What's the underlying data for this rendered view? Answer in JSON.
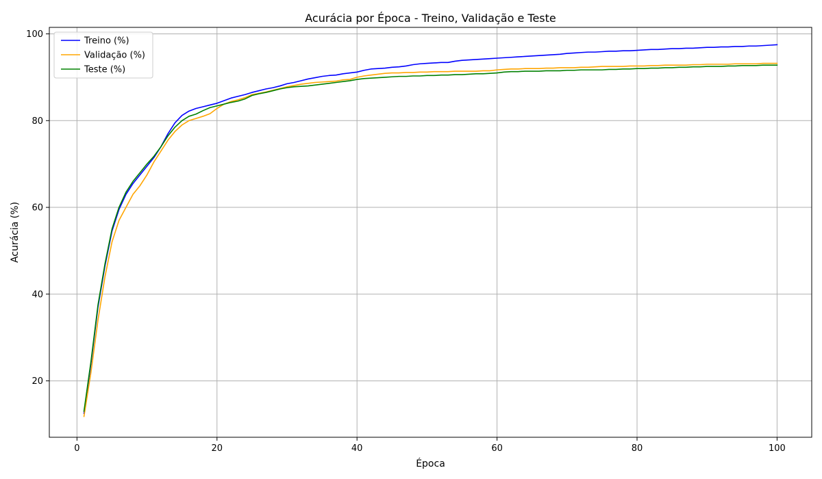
{
  "chart_data": {
    "type": "line",
    "title": "Acurácia por Época - Treino, Validação e Teste",
    "xlabel": "Época",
    "ylabel": "Acurácia (%)",
    "xlim": [
      -3.95,
      104.95
    ],
    "ylim": [
      7.0,
      101.5
    ],
    "xticks": [
      0,
      20,
      40,
      60,
      80,
      100
    ],
    "yticks": [
      20,
      40,
      60,
      80,
      100
    ],
    "grid": true,
    "legend_position": "upper-left",
    "x": [
      1,
      2,
      3,
      4,
      5,
      6,
      7,
      8,
      9,
      10,
      11,
      12,
      13,
      14,
      15,
      16,
      17,
      18,
      19,
      20,
      21,
      22,
      23,
      24,
      25,
      26,
      27,
      28,
      29,
      30,
      31,
      32,
      33,
      34,
      35,
      36,
      37,
      38,
      39,
      40,
      41,
      42,
      43,
      44,
      45,
      46,
      47,
      48,
      49,
      50,
      51,
      52,
      53,
      54,
      55,
      56,
      57,
      58,
      59,
      60,
      61,
      62,
      63,
      64,
      65,
      66,
      67,
      68,
      69,
      70,
      71,
      72,
      73,
      74,
      75,
      76,
      77,
      78,
      79,
      80,
      81,
      82,
      83,
      84,
      85,
      86,
      87,
      88,
      89,
      90,
      91,
      92,
      93,
      94,
      95,
      96,
      97,
      98,
      99,
      100
    ],
    "series": [
      {
        "name": "Treino (%)",
        "color": "#0000ff",
        "values": [
          12.5,
          24.0,
          37.0,
          46.5,
          54.5,
          59.5,
          63.0,
          65.5,
          67.5,
          69.5,
          71.5,
          74.0,
          77.0,
          79.5,
          81.2,
          82.2,
          82.8,
          83.2,
          83.6,
          84.0,
          84.6,
          85.2,
          85.6,
          86.0,
          86.5,
          86.9,
          87.3,
          87.6,
          88.0,
          88.5,
          88.8,
          89.2,
          89.6,
          89.9,
          90.2,
          90.4,
          90.5,
          90.8,
          91.0,
          91.2,
          91.6,
          91.9,
          92.0,
          92.1,
          92.3,
          92.4,
          92.6,
          92.9,
          93.1,
          93.2,
          93.3,
          93.4,
          93.4,
          93.7,
          93.9,
          94.0,
          94.1,
          94.2,
          94.3,
          94.4,
          94.5,
          94.6,
          94.7,
          94.8,
          94.9,
          95.0,
          95.1,
          95.2,
          95.3,
          95.5,
          95.6,
          95.7,
          95.8,
          95.8,
          95.9,
          96.0,
          96.0,
          96.1,
          96.1,
          96.2,
          96.3,
          96.4,
          96.4,
          96.5,
          96.6,
          96.6,
          96.7,
          96.7,
          96.8,
          96.9,
          96.9,
          97.0,
          97.0,
          97.1,
          97.1,
          97.2,
          97.2,
          97.3,
          97.4,
          97.5
        ]
      },
      {
        "name": "Validação (%)",
        "color": "#ffa500",
        "values": [
          11.8,
          22.0,
          34.0,
          44.0,
          52.0,
          57.0,
          60.0,
          63.0,
          65.0,
          67.5,
          70.5,
          73.0,
          75.5,
          77.5,
          79.0,
          80.0,
          80.5,
          81.0,
          81.6,
          82.8,
          83.8,
          84.4,
          84.8,
          85.3,
          86.0,
          86.3,
          86.6,
          87.0,
          87.4,
          87.8,
          88.1,
          88.4,
          88.6,
          88.8,
          88.9,
          89.0,
          89.1,
          89.4,
          89.5,
          90.0,
          90.3,
          90.5,
          90.7,
          90.9,
          91.0,
          91.0,
          91.1,
          91.1,
          91.2,
          91.2,
          91.3,
          91.3,
          91.3,
          91.4,
          91.4,
          91.4,
          91.4,
          91.5,
          91.5,
          91.7,
          91.8,
          91.9,
          91.9,
          92.0,
          92.0,
          92.0,
          92.1,
          92.1,
          92.2,
          92.2,
          92.2,
          92.3,
          92.3,
          92.4,
          92.5,
          92.5,
          92.5,
          92.5,
          92.6,
          92.6,
          92.6,
          92.7,
          92.7,
          92.8,
          92.8,
          92.8,
          92.8,
          92.9,
          92.9,
          93.0,
          93.0,
          93.0,
          93.0,
          93.1,
          93.1,
          93.1,
          93.1,
          93.2,
          93.2,
          93.2
        ]
      },
      {
        "name": "Teste (%)",
        "color": "#008000",
        "values": [
          13.0,
          24.5,
          37.5,
          47.0,
          55.0,
          60.0,
          63.5,
          66.0,
          68.0,
          70.0,
          71.8,
          74.0,
          76.5,
          78.5,
          80.0,
          81.0,
          81.5,
          82.3,
          83.0,
          83.4,
          83.8,
          84.2,
          84.5,
          85.0,
          85.8,
          86.2,
          86.5,
          86.9,
          87.3,
          87.6,
          87.8,
          87.9,
          88.0,
          88.2,
          88.4,
          88.6,
          88.8,
          89.0,
          89.2,
          89.5,
          89.7,
          89.8,
          89.9,
          90.0,
          90.1,
          90.2,
          90.2,
          90.3,
          90.3,
          90.4,
          90.4,
          90.5,
          90.5,
          90.6,
          90.6,
          90.7,
          90.8,
          90.8,
          90.9,
          91.0,
          91.2,
          91.3,
          91.3,
          91.4,
          91.4,
          91.4,
          91.5,
          91.5,
          91.5,
          91.6,
          91.6,
          91.7,
          91.7,
          91.7,
          91.7,
          91.8,
          91.8,
          91.9,
          91.9,
          92.0,
          92.0,
          92.1,
          92.1,
          92.2,
          92.2,
          92.3,
          92.3,
          92.4,
          92.4,
          92.5,
          92.5,
          92.5,
          92.6,
          92.6,
          92.7,
          92.7,
          92.7,
          92.8,
          92.8,
          92.8
        ]
      }
    ]
  }
}
